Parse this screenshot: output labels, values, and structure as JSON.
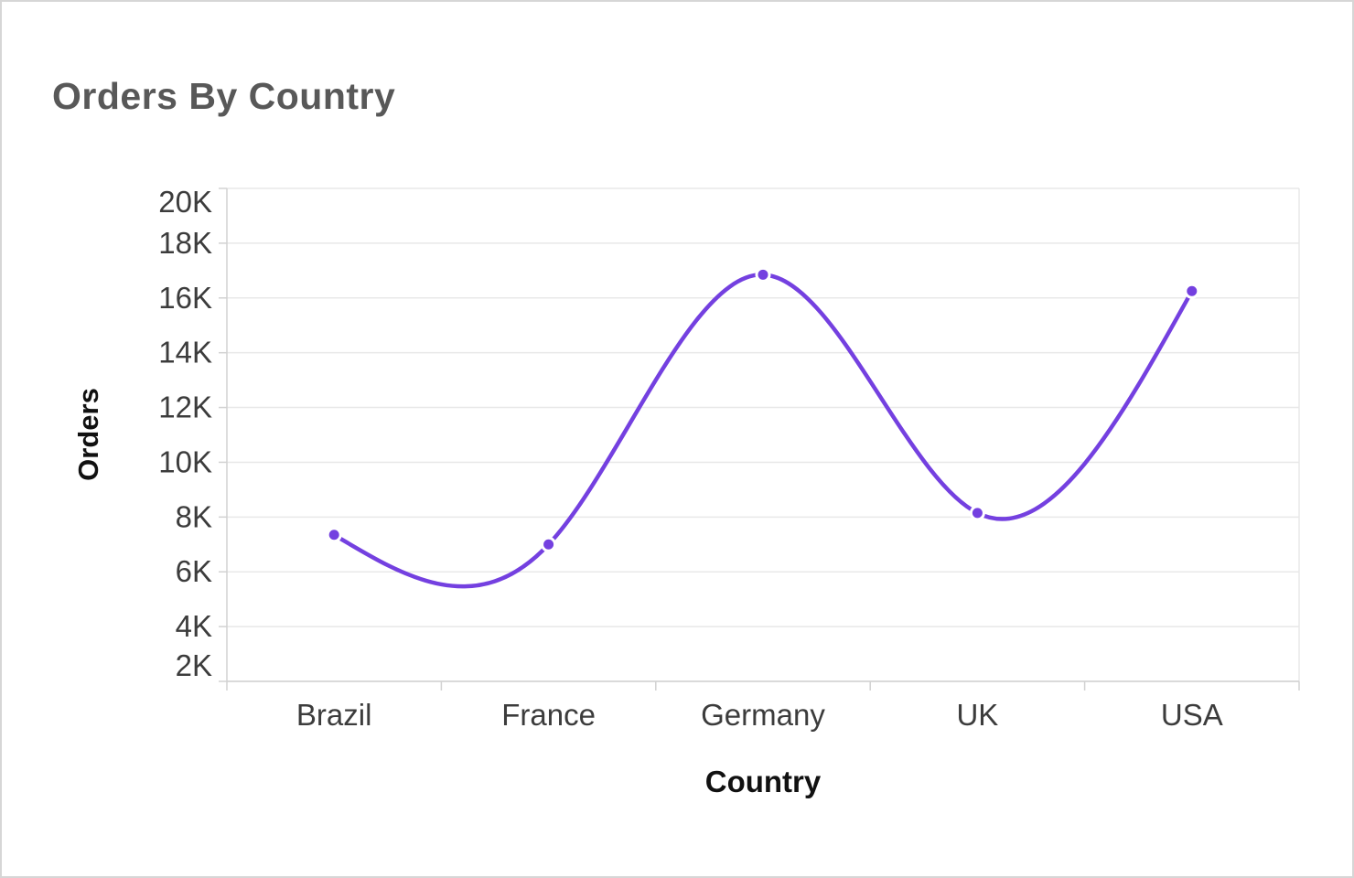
{
  "page": {
    "title": "Orders By Country"
  },
  "chart_data": {
    "type": "line",
    "subtype": "spline",
    "title": "Orders By Country",
    "xlabel": "Country",
    "ylabel": "Orders",
    "categories": [
      "Brazil",
      "France",
      "Germany",
      "UK",
      "USA"
    ],
    "series": [
      {
        "name": "Orders",
        "values": [
          7350,
          7000,
          16850,
          8150,
          16250
        ]
      }
    ],
    "ylim": [
      2000,
      20000
    ],
    "ytick_step": 2000,
    "ytick_labels": [
      "2K",
      "4K",
      "6K",
      "8K",
      "10K",
      "12K",
      "14K",
      "16K",
      "18K",
      "20K"
    ],
    "grid": "horizontal",
    "legend": "none",
    "colors": {
      "line": "#7440e0",
      "marker": "#7440e0",
      "marker_halo": "#ffffff",
      "gridline": "#e8e8e8",
      "axis_line": "#d2d2d2",
      "tick_label": "#3c3c3c",
      "axis_title": "#111111",
      "chart_title": "#585858"
    }
  }
}
